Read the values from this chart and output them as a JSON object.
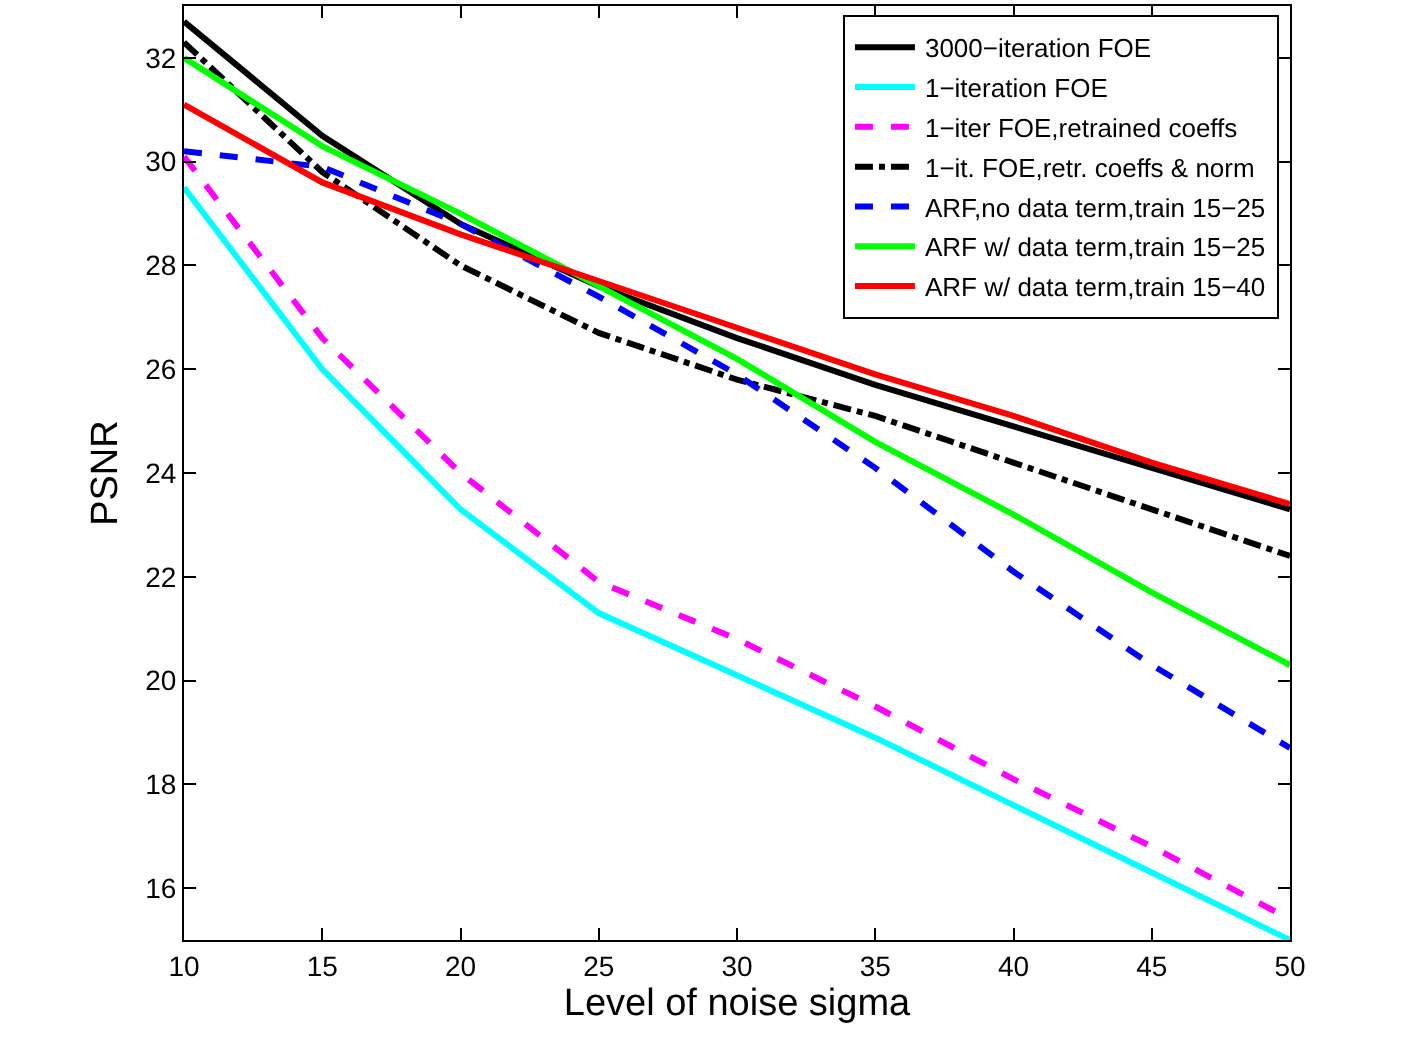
{
  "chart_data": {
    "type": "line",
    "xlabel": "Level of noise sigma",
    "ylabel": "PSNR",
    "x": [
      10,
      15,
      20,
      25,
      30,
      35,
      40,
      45,
      50
    ],
    "xlim": [
      10,
      50
    ],
    "xticks": [
      10,
      15,
      20,
      25,
      30,
      35,
      40,
      45,
      50
    ],
    "ylim": [
      15,
      33
    ],
    "yticks": [
      16,
      18,
      20,
      22,
      24,
      26,
      28,
      30,
      32
    ],
    "grid": false,
    "legend": "top right",
    "marker": "none",
    "series": [
      {
        "name": "3000−iteration FOE",
        "color": "#000000",
        "line_style": "solid",
        "values": [
          32.7,
          30.5,
          28.8,
          27.6,
          26.6,
          25.7,
          24.9,
          24.1,
          23.3
        ]
      },
      {
        "name": "1−iteration FOE",
        "color": "#00ffff",
        "line_style": "solid",
        "values": [
          29.5,
          26.0,
          23.3,
          21.3,
          20.1,
          18.9,
          17.6,
          16.3,
          15.0
        ]
      },
      {
        "name": "1−iter FOE,retrained coeffs",
        "color": "#ff00ff",
        "line_style": "dashed",
        "values": [
          30.1,
          26.6,
          24.0,
          21.9,
          20.8,
          19.5,
          18.1,
          16.8,
          15.4
        ]
      },
      {
        "name": "1−it. FOE,retr. coeffs & norm",
        "color": "#000000",
        "line_style": "dashdot",
        "values": [
          32.3,
          29.8,
          28.0,
          26.7,
          25.8,
          25.1,
          24.2,
          23.3,
          22.4
        ]
      },
      {
        "name": "ARF,no data term,train 15−25",
        "color": "#0000ff",
        "line_style": "dashed",
        "values": [
          30.2,
          29.9,
          28.8,
          27.4,
          25.9,
          24.1,
          22.1,
          20.3,
          18.7
        ]
      },
      {
        "name": "ARF w/ data term,train 15−25",
        "color": "#00ff00",
        "line_style": "solid",
        "values": [
          32.0,
          30.3,
          29.0,
          27.6,
          26.2,
          24.6,
          23.2,
          21.7,
          20.3
        ]
      },
      {
        "name": "ARF w/ data term,train 15−40",
        "color": "#ff0000",
        "line_style": "solid",
        "values": [
          31.1,
          29.6,
          28.6,
          27.7,
          26.8,
          25.9,
          25.1,
          24.2,
          23.4
        ]
      }
    ]
  }
}
